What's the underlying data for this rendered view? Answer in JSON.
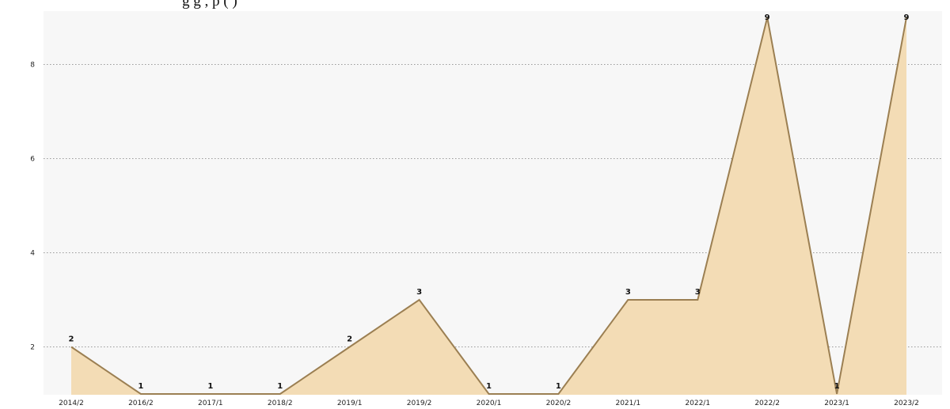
{
  "header_fragment": "g                                                             g                    , p        (                )",
  "chart_data": {
    "type": "area",
    "title": "",
    "xlabel": "",
    "ylabel": "",
    "categories": [
      "2014/2",
      "2016/2",
      "2017/1",
      "2018/2",
      "2019/1",
      "2019/2",
      "2020/1",
      "2020/2",
      "2021/1",
      "2022/1",
      "2022/2",
      "2023/1",
      "2023/2"
    ],
    "values": [
      2,
      1,
      1,
      1,
      2,
      3,
      1,
      1,
      3,
      3,
      9,
      1,
      9
    ],
    "ylim": [
      1,
      9
    ],
    "yticks": [
      2,
      4,
      6,
      8
    ],
    "grid": "horizontal dotted",
    "legend": "none",
    "data_labels": true,
    "colors": {
      "fill": "#f3dcb5",
      "line": "#9b7f52",
      "plot_bg": "#f7f7f7",
      "grid": "#9a9a9a"
    }
  }
}
